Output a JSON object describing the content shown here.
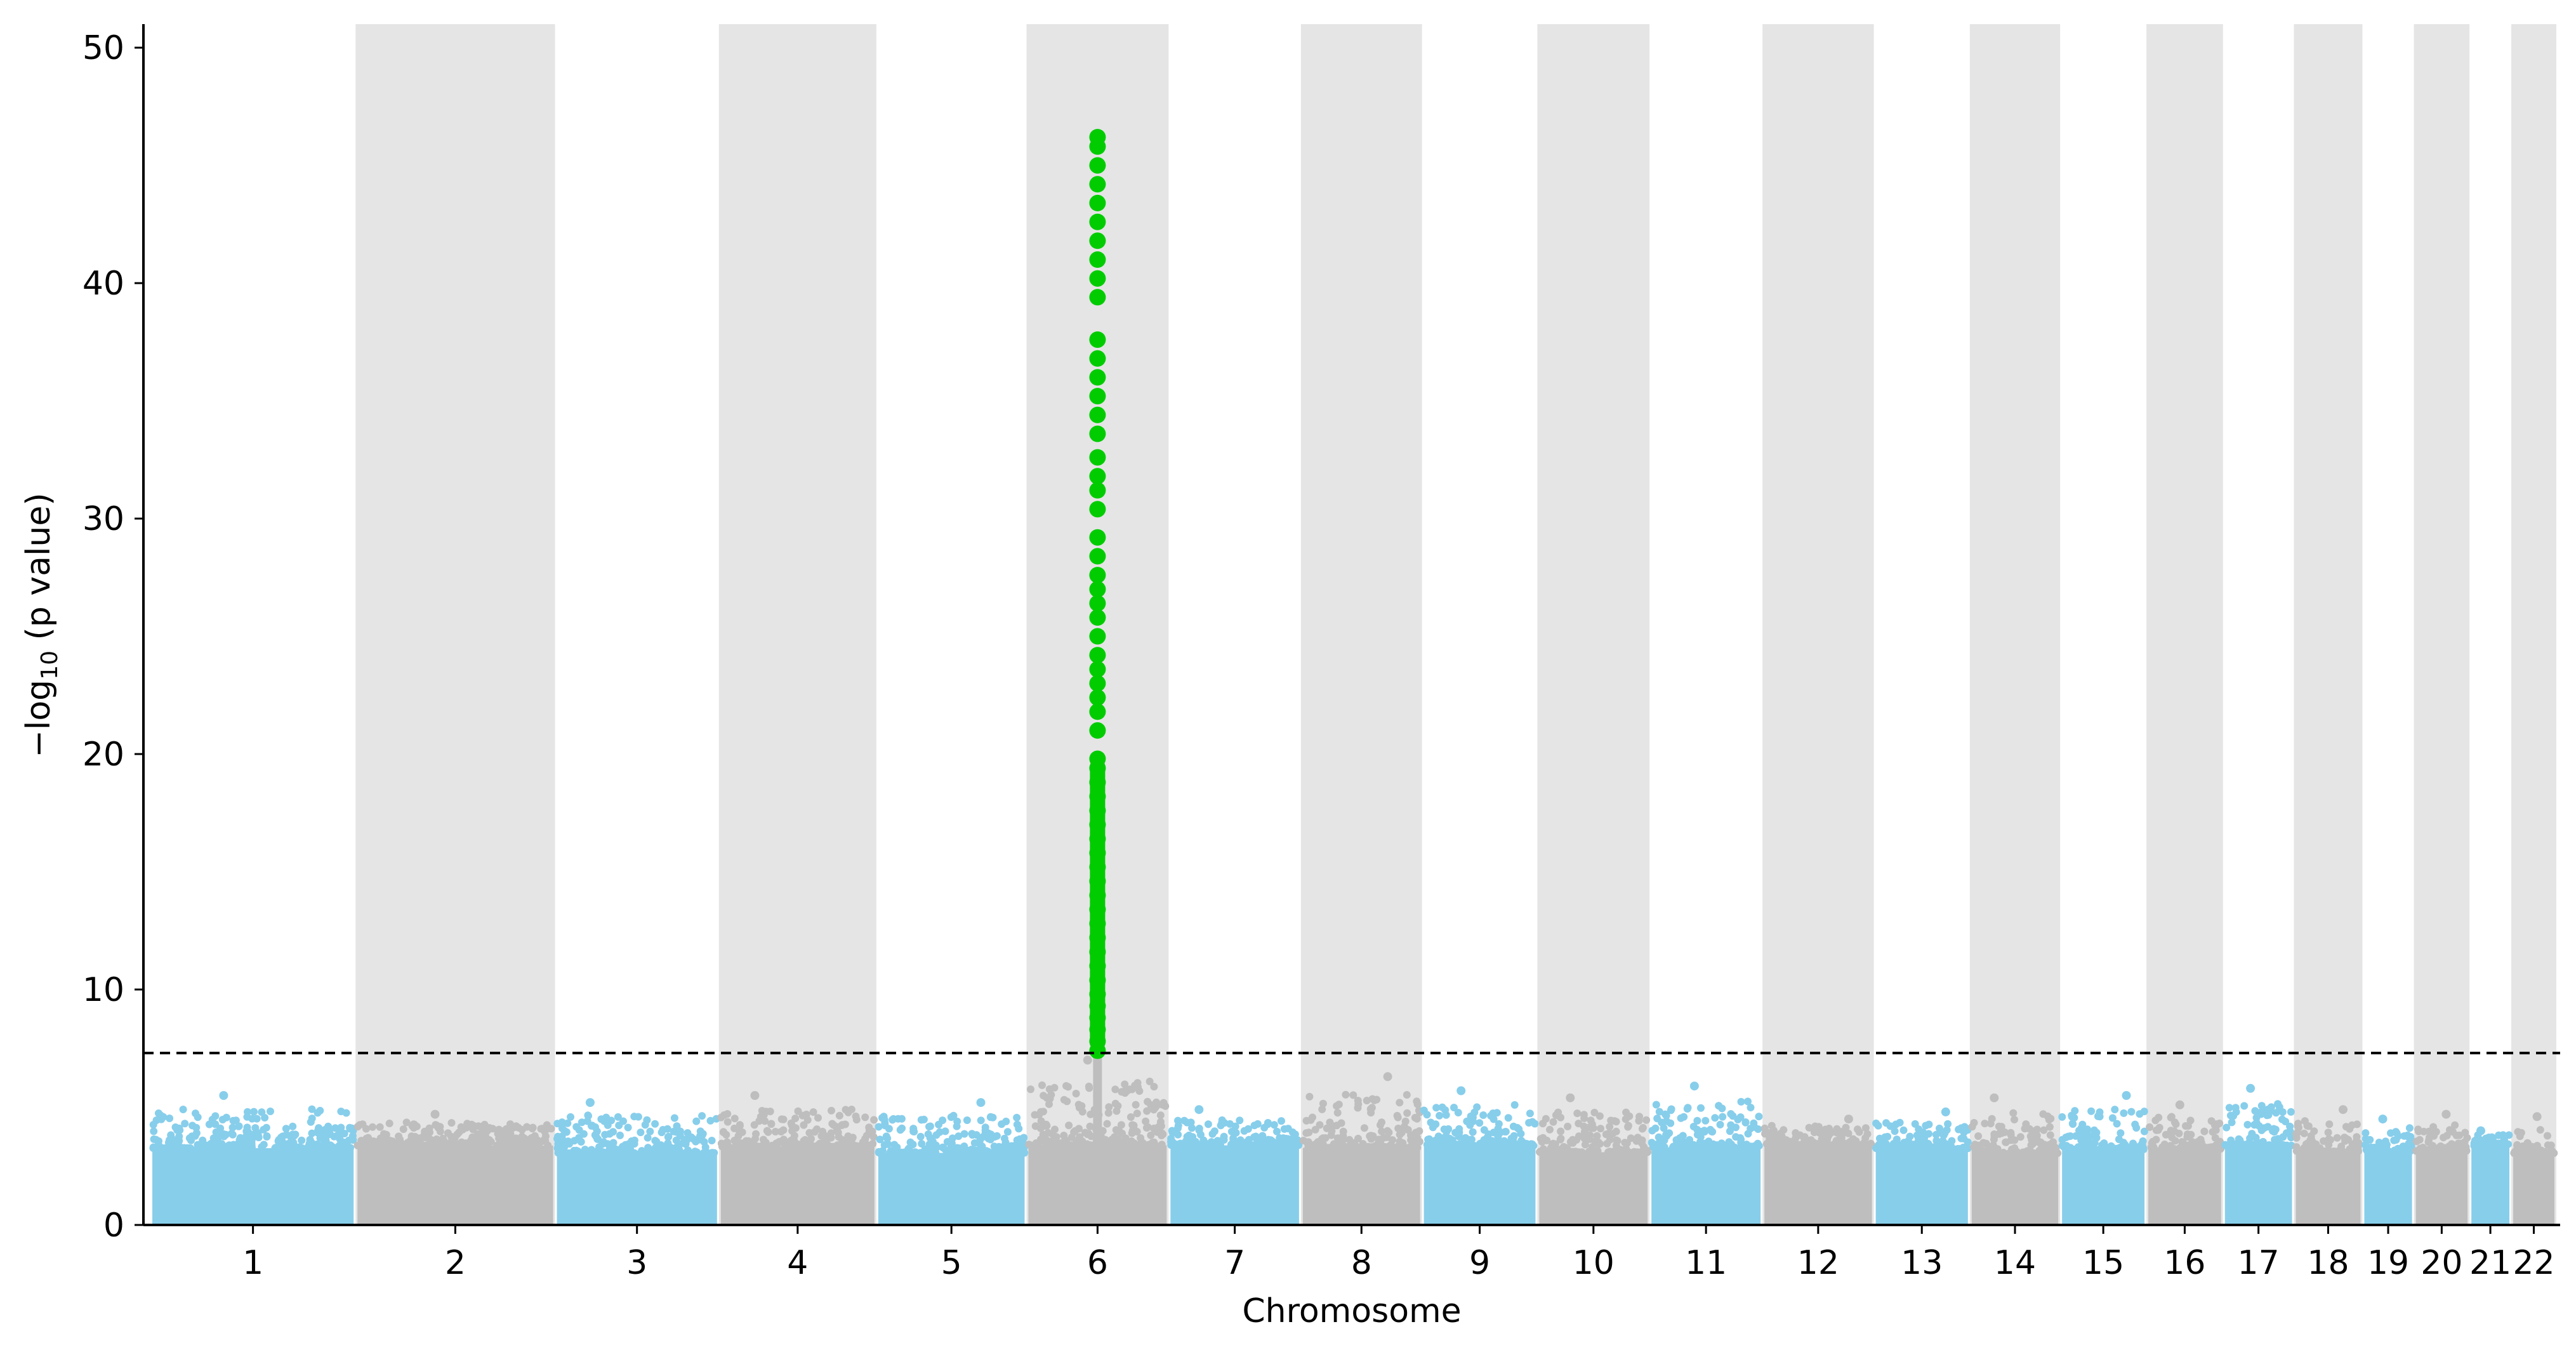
{
  "chart_data": {
    "type": "scatter",
    "subtype": "manhattan",
    "title": "",
    "xlabel": "Chromosome",
    "ylabel_main": "−log",
    "ylabel_sub": "10",
    "ylabel_rest": " (p value)",
    "ylim": [
      0,
      51
    ],
    "yticks": [
      0,
      10,
      20,
      30,
      40,
      50
    ],
    "significance_threshold": 7.3,
    "grid": false,
    "legend": "none",
    "colors": {
      "odd_chromosome": "#87ceeb",
      "even_chromosome": "#bebebe",
      "significant": "#00cc00",
      "band": "#e5e5e5",
      "threshold_line": "#000000"
    },
    "chromosomes": [
      {
        "label": "1",
        "length": 249,
        "max_y": 5.5,
        "highlight_band": false
      },
      {
        "label": "2",
        "length": 242,
        "max_y": 4.7,
        "highlight_band": true
      },
      {
        "label": "3",
        "length": 198,
        "max_y": 5.2,
        "highlight_band": false
      },
      {
        "label": "4",
        "length": 190,
        "max_y": 5.5,
        "highlight_band": true
      },
      {
        "label": "5",
        "length": 181,
        "max_y": 5.2,
        "highlight_band": false
      },
      {
        "label": "6",
        "length": 171,
        "max_y": 7.0,
        "highlight_band": true
      },
      {
        "label": "7",
        "length": 159,
        "max_y": 4.9,
        "highlight_band": false
      },
      {
        "label": "8",
        "length": 145,
        "max_y": 6.3,
        "highlight_band": true
      },
      {
        "label": "9",
        "length": 138,
        "max_y": 5.7,
        "highlight_band": false
      },
      {
        "label": "10",
        "length": 134,
        "max_y": 5.4,
        "highlight_band": true
      },
      {
        "label": "11",
        "length": 135,
        "max_y": 5.9,
        "highlight_band": false
      },
      {
        "label": "12",
        "length": 133,
        "max_y": 4.5,
        "highlight_band": true
      },
      {
        "label": "13",
        "length": 114,
        "max_y": 4.8,
        "highlight_band": false
      },
      {
        "label": "14",
        "length": 107,
        "max_y": 5.4,
        "highlight_band": true
      },
      {
        "label": "15",
        "length": 102,
        "max_y": 5.5,
        "highlight_band": false
      },
      {
        "label": "16",
        "length": 90,
        "max_y": 5.1,
        "highlight_band": true
      },
      {
        "label": "17",
        "length": 83,
        "max_y": 5.8,
        "highlight_band": false
      },
      {
        "label": "18",
        "length": 80,
        "max_y": 4.9,
        "highlight_band": true
      },
      {
        "label": "19",
        "length": 59,
        "max_y": 4.5,
        "highlight_band": false
      },
      {
        "label": "20",
        "length": 64,
        "max_y": 4.7,
        "highlight_band": true
      },
      {
        "label": "21",
        "length": 47,
        "max_y": 4.0,
        "highlight_band": false
      },
      {
        "label": "22",
        "length": 51,
        "max_y": 4.6,
        "highlight_band": true
      }
    ],
    "significant_points": {
      "chromosome": "6",
      "y_values": [
        7.4,
        7.8,
        8.3,
        8.8,
        9.3,
        9.8,
        10.4,
        11.0,
        11.6,
        12.2,
        12.8,
        13.4,
        14.0,
        14.6,
        15.2,
        15.8,
        16.4,
        17.0,
        17.6,
        18.2,
        18.8,
        19.4,
        19.8,
        21.0,
        21.8,
        22.4,
        23.0,
        23.6,
        24.2,
        25.0,
        25.8,
        26.4,
        27.0,
        27.6,
        28.4,
        29.2,
        30.4,
        31.2,
        31.8,
        32.6,
        33.6,
        34.4,
        35.2,
        36.0,
        36.8,
        37.6,
        39.4,
        40.2,
        41.0,
        41.8,
        42.6,
        43.4,
        44.2,
        45.0,
        45.8,
        46.2
      ]
    }
  }
}
